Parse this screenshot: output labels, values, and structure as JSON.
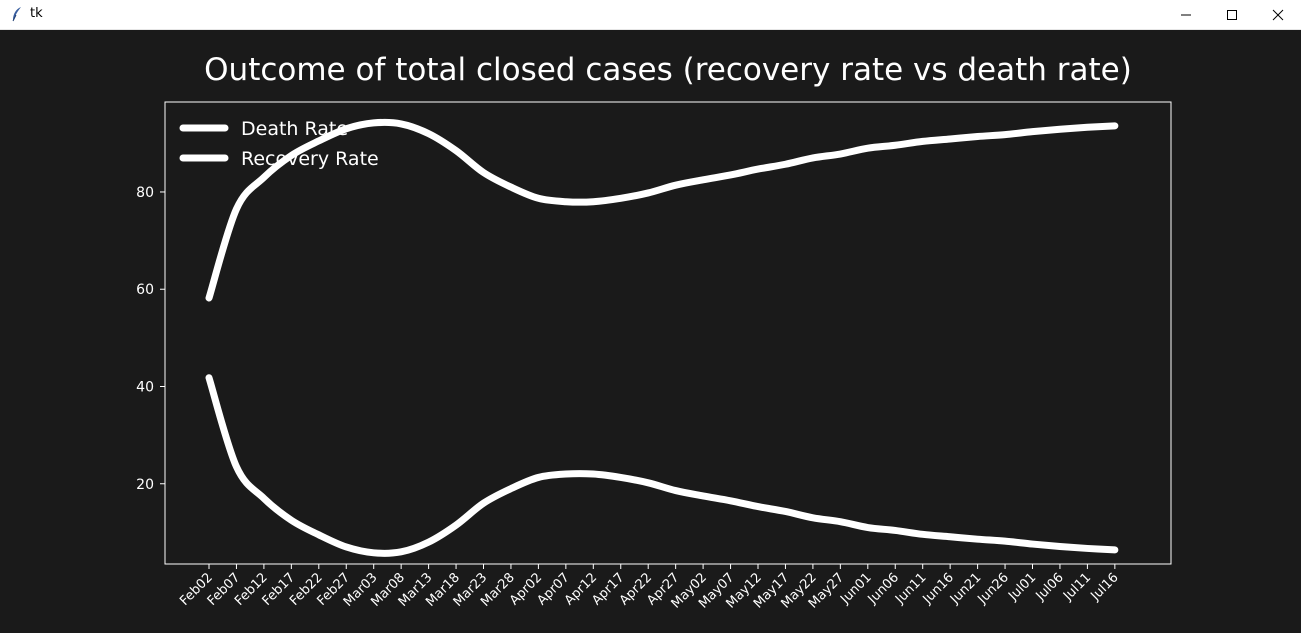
{
  "window": {
    "title": "tk",
    "controls": [
      "minimize",
      "maximize",
      "close"
    ]
  },
  "colors": {
    "background": "#1a1a1a",
    "line": "#ffffff",
    "text": "#ffffff"
  },
  "chart_data": {
    "type": "line",
    "title": "Outcome of total closed cases (recovery rate vs death rate)",
    "xlabel": "",
    "ylabel": "",
    "ylim": [
      3.5,
      98.5
    ],
    "yticks": [
      20,
      40,
      60,
      80
    ],
    "grid": false,
    "legend_position": "upper-left",
    "categories": [
      "Feb02",
      "Feb07",
      "Feb12",
      "Feb17",
      "Feb22",
      "Feb27",
      "Mar03",
      "Mar08",
      "Mar13",
      "Mar18",
      "Mar23",
      "Mar28",
      "Apr02",
      "Apr07",
      "Apr12",
      "Apr17",
      "Apr22",
      "Apr27",
      "May02",
      "May07",
      "May12",
      "May17",
      "May22",
      "May27",
      "Jun01",
      "Jun06",
      "Jun11",
      "Jun16",
      "Jun21",
      "Jun26",
      "Jul01",
      "Jul06",
      "Jul11",
      "Jul16"
    ],
    "series": [
      {
        "name": "Death Rate",
        "values": [
          41.8,
          23.5,
          17.0,
          12.5,
          9.5,
          7.0,
          5.8,
          6.0,
          8.0,
          11.5,
          16.0,
          19.0,
          21.3,
          22.0,
          22.0,
          21.3,
          20.2,
          18.6,
          17.5,
          16.5,
          15.3,
          14.3,
          13.0,
          12.2,
          11.0,
          10.4,
          9.6,
          9.1,
          8.6,
          8.2,
          7.6,
          7.1,
          6.7,
          6.4
        ]
      },
      {
        "name": "Recovery Rate",
        "values": [
          58.2,
          76.5,
          83.0,
          87.5,
          90.5,
          93.0,
          94.2,
          94.0,
          92.0,
          88.5,
          84.0,
          81.0,
          78.7,
          78.0,
          78.0,
          78.7,
          79.8,
          81.4,
          82.5,
          83.5,
          84.7,
          85.7,
          87.0,
          87.8,
          89.0,
          89.6,
          90.4,
          90.9,
          91.4,
          91.8,
          92.4,
          92.9,
          93.3,
          93.6
        ]
      }
    ]
  }
}
